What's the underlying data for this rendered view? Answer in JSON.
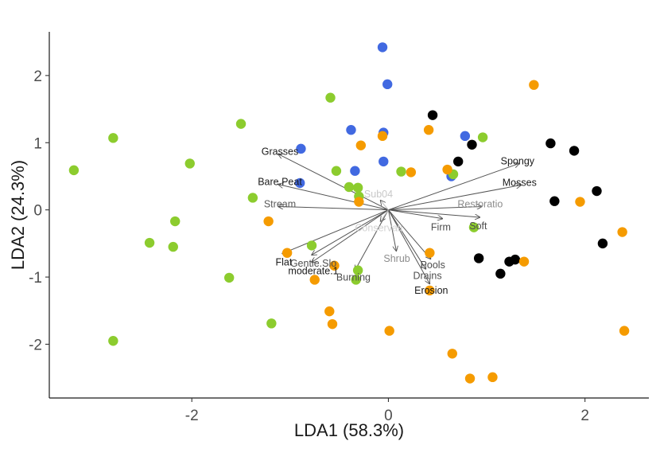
{
  "chart_data": {
    "type": "scatter",
    "title": "",
    "xlabel": "LDA1 (58.3%)",
    "ylabel": "LDA2 (24.3%)",
    "xlim": [
      -3.45,
      2.65
    ],
    "ylim": [
      -2.8,
      2.65
    ],
    "xticks": [
      -2,
      0,
      2
    ],
    "xtick_labels": [
      "-2",
      "0",
      "2"
    ],
    "yticks": [
      -2,
      -1,
      0,
      1,
      2
    ],
    "ytick_labels": [
      "-2",
      "-1",
      "0",
      "1",
      "2"
    ],
    "grid": false,
    "legend": "none",
    "series": [
      {
        "color": "#4169e1",
        "points": [
          [
            -0.06,
            2.42
          ],
          [
            -0.01,
            1.87
          ],
          [
            -0.38,
            1.19
          ],
          [
            -0.05,
            1.15
          ],
          [
            -0.89,
            0.91
          ],
          [
            -0.05,
            0.72
          ],
          [
            -0.34,
            0.58
          ],
          [
            -0.9,
            0.4
          ],
          [
            0.78,
            1.1
          ],
          [
            0.64,
            0.5
          ]
        ]
      },
      {
        "color": "#000000",
        "points": [
          [
            0.45,
            1.41
          ],
          [
            0.85,
            0.97
          ],
          [
            0.71,
            0.72
          ],
          [
            1.65,
            0.99
          ],
          [
            1.89,
            0.88
          ],
          [
            1.69,
            0.13
          ],
          [
            2.12,
            0.28
          ],
          [
            2.18,
            -0.5
          ],
          [
            0.92,
            -0.72
          ],
          [
            1.14,
            -0.95
          ],
          [
            1.23,
            -0.77
          ],
          [
            1.29,
            -0.74
          ]
        ]
      },
      {
        "color": "#8ccc2e",
        "points": [
          [
            -2.8,
            1.07
          ],
          [
            -3.2,
            0.59
          ],
          [
            -2.02,
            0.69
          ],
          [
            -1.5,
            1.28
          ],
          [
            -0.59,
            1.67
          ],
          [
            -0.53,
            0.58
          ],
          [
            -1.38,
            0.18
          ],
          [
            -2.43,
            -0.49
          ],
          [
            -2.17,
            -0.17
          ],
          [
            -2.19,
            -0.55
          ],
          [
            -1.62,
            -1.01
          ],
          [
            -1.19,
            -1.69
          ],
          [
            -0.78,
            -0.53
          ],
          [
            -0.4,
            0.34
          ],
          [
            -0.31,
            0.33
          ],
          [
            -0.3,
            0.2
          ],
          [
            -0.31,
            -0.9
          ],
          [
            -0.33,
            -1.04
          ],
          [
            0.13,
            0.57
          ],
          [
            0.66,
            0.53
          ],
          [
            0.87,
            -0.26
          ],
          [
            0.96,
            1.08
          ],
          [
            -2.8,
            -1.95
          ]
        ]
      },
      {
        "color": "#f59b00",
        "points": [
          [
            1.48,
            1.86
          ],
          [
            0.41,
            1.19
          ],
          [
            -0.06,
            1.1
          ],
          [
            -0.28,
            0.96
          ],
          [
            0.23,
            0.56
          ],
          [
            0.6,
            0.6
          ],
          [
            -0.3,
            0.12
          ],
          [
            -1.22,
            -0.17
          ],
          [
            -1.03,
            -0.64
          ],
          [
            -0.55,
            -0.83
          ],
          [
            -0.75,
            -1.04
          ],
          [
            -0.57,
            -1.7
          ],
          [
            -0.6,
            -1.51
          ],
          [
            0.01,
            -1.8
          ],
          [
            0.42,
            -0.64
          ],
          [
            0.42,
            -1.2
          ],
          [
            1.38,
            -0.77
          ],
          [
            1.95,
            0.12
          ],
          [
            2.38,
            -0.33
          ],
          [
            2.4,
            -1.8
          ],
          [
            0.65,
            -2.14
          ],
          [
            0.83,
            -2.51
          ],
          [
            1.06,
            -2.49
          ]
        ]
      }
    ],
    "vectors": [
      {
        "label": "Spongy",
        "x": 1.33,
        "y": 0.69,
        "color": "#1a1a1a"
      },
      {
        "label": "Mosses",
        "x": 1.35,
        "y": 0.37,
        "color": "#1a1a1a"
      },
      {
        "label": "Grasses",
        "x": -1.12,
        "y": 0.83,
        "color": "#1a1a1a"
      },
      {
        "label": "Bare.Peat",
        "x": -1.12,
        "y": 0.38,
        "color": "#1a1a1a"
      },
      {
        "label": "Stream",
        "x": -1.12,
        "y": 0.05,
        "color": "#5a5a5a"
      },
      {
        "label": "Restoratio",
        "x": 0.95,
        "y": 0.05,
        "color": "#8c8c8c"
      },
      {
        "label": "Soft",
        "x": 0.93,
        "y": -0.11,
        "color": "#4d4d4d"
      },
      {
        "label": "Firm",
        "x": 0.55,
        "y": -0.13,
        "color": "#4d4d4d"
      },
      {
        "label": "Flat",
        "x": -1.08,
        "y": -0.65,
        "color": "#1a1a1a"
      },
      {
        "label": "Gentle.Slo",
        "x": -0.78,
        "y": -0.67,
        "color": "#4d4d4d"
      },
      {
        "label": "moderate.1",
        "x": -0.78,
        "y": -0.78,
        "color": "#1a1a1a"
      },
      {
        "label": "Burning",
        "x": -0.34,
        "y": -0.9,
        "color": "#4d4d4d"
      },
      {
        "label": "Shrub",
        "x": 0.08,
        "y": -0.61,
        "color": "#8c8c8c"
      },
      {
        "label": "Pools",
        "x": 0.43,
        "y": -0.73,
        "color": "#4d4d4d"
      },
      {
        "label": "Drains",
        "x": 0.38,
        "y": -0.88,
        "color": "#4d4d4d"
      },
      {
        "label": "Erosion",
        "x": 0.42,
        "y": -1.1,
        "color": "#1a1a1a"
      },
      {
        "label": "Sub04",
        "x": -0.08,
        "y": 0.14,
        "color": "#c8c8c8"
      },
      {
        "label": "Conservati",
        "x": -0.08,
        "y": -0.17,
        "color": "#d2d2d2"
      }
    ]
  }
}
